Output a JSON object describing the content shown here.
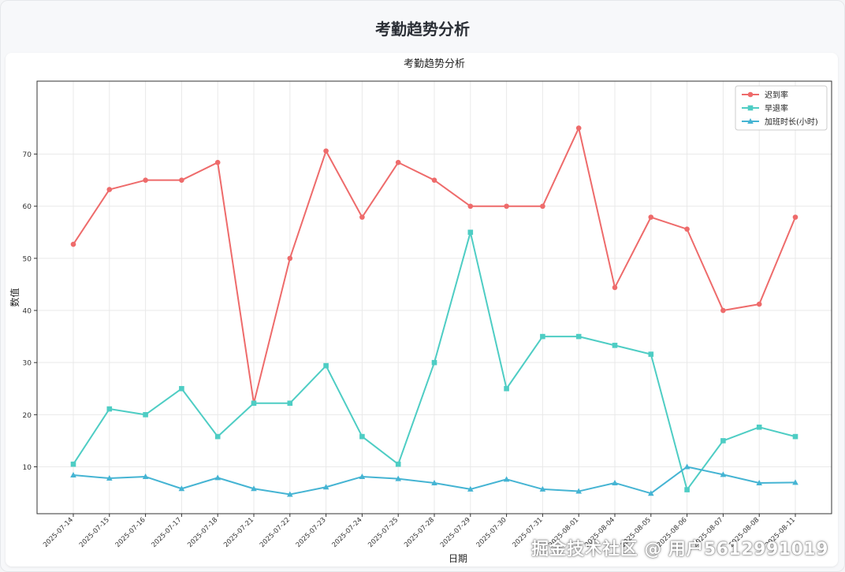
{
  "page": {
    "title": "考勤趋势分析"
  },
  "watermark": "掘金技术社区 @ 用户5612991019",
  "colors": {
    "late": "#ee6b6b",
    "early": "#4ecdc4",
    "overtime": "#45b4d3",
    "grid": "#e9e9e9",
    "axis": "#333333"
  },
  "chart_data": {
    "type": "line",
    "title": "考勤趋势分析",
    "xlabel": "日期",
    "ylabel": "数值",
    "ylim": [
      1,
      84
    ],
    "yticks": [
      10,
      20,
      30,
      40,
      50,
      60,
      70
    ],
    "grid": true,
    "legend_position": "top-right",
    "categories": [
      "2025-07-14",
      "2025-07-15",
      "2025-07-16",
      "2025-07-17",
      "2025-07-18",
      "2025-07-21",
      "2025-07-22",
      "2025-07-23",
      "2025-07-24",
      "2025-07-25",
      "2025-07-28",
      "2025-07-29",
      "2025-07-30",
      "2025-07-31",
      "2025-08-01",
      "2025-08-04",
      "2025-08-05",
      "2025-08-06",
      "2025-08-07",
      "2025-08-08",
      "2025-08-11"
    ],
    "series": [
      {
        "name": "迟到率",
        "marker": "circle",
        "color": "#ee6b6b",
        "values": [
          52.7,
          63.2,
          65.0,
          65.0,
          68.4,
          22.2,
          50.0,
          70.6,
          57.9,
          68.4,
          65.0,
          60.0,
          60.0,
          60.0,
          75.0,
          44.4,
          57.9,
          55.6,
          40.0,
          41.2,
          57.9
        ]
      },
      {
        "name": "早退率",
        "marker": "square",
        "color": "#4ecdc4",
        "values": [
          10.5,
          21.1,
          20.0,
          25.0,
          15.8,
          22.2,
          22.2,
          29.4,
          15.8,
          10.5,
          30.0,
          55.0,
          25.0,
          35.0,
          35.0,
          33.3,
          31.6,
          5.6,
          15.0,
          17.6,
          15.8
        ]
      },
      {
        "name": "加班时长(小时)",
        "marker": "triangle",
        "color": "#45b4d3",
        "values": [
          8.4,
          7.8,
          8.1,
          5.8,
          7.9,
          5.8,
          4.7,
          6.1,
          8.1,
          7.7,
          6.9,
          5.7,
          7.6,
          5.7,
          5.3,
          6.9,
          4.9,
          10.0,
          8.5,
          6.9,
          7.0
        ]
      }
    ]
  }
}
